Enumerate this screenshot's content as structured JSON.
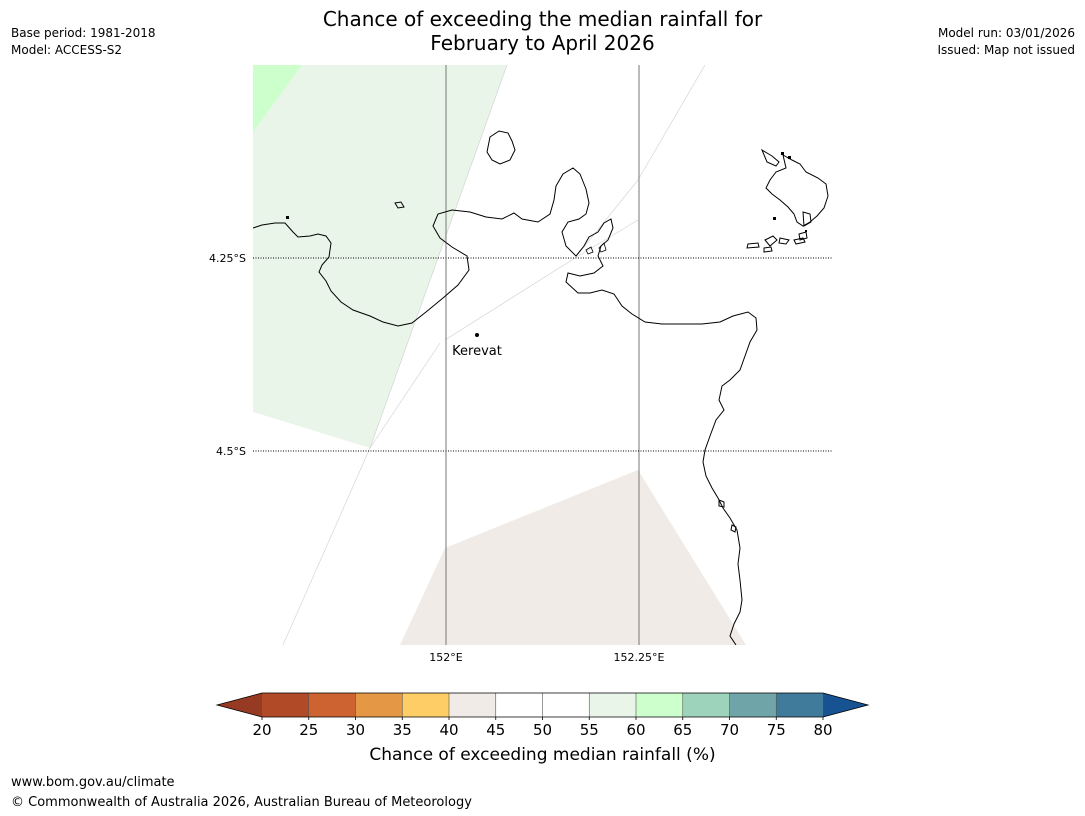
{
  "header": {
    "base_period": "Base period: 1981-2018",
    "model": "Model: ACCESS-S2",
    "title_line1": "Chance of exceeding the median rainfall for",
    "title_line2": "February to April 2026",
    "model_run": "Model run: 03/01/2026",
    "issued": "Issued: Map not issued"
  },
  "map": {
    "lat_labels": [
      "4.25°S",
      "4.5°S"
    ],
    "lon_labels": [
      "152°E",
      "152.25°E"
    ],
    "place_name": "Kerevat",
    "colors": {
      "band_60_65": "#ccffcc",
      "band_55_60": "#e9f5e9",
      "band_40_45": "#f0ebe6",
      "coastline": "#000000",
      "gridline": "#555555"
    }
  },
  "colorbar": {
    "ticks": [
      "20",
      "25",
      "30",
      "35",
      "40",
      "45",
      "50",
      "55",
      "60",
      "65",
      "70",
      "75",
      "80"
    ],
    "colors": [
      "#b14a26",
      "#cc6331",
      "#e49745",
      "#ffcd66",
      "#f0ebe6",
      "#ffffff",
      "#ffffff",
      "#e9f5e9",
      "#ccffcc",
      "#9dd2bb",
      "#6fa5a8",
      "#417b9b"
    ],
    "under_color": "#973a23",
    "over_color": "#175392",
    "title": "Chance of exceeding median rainfall (%)"
  },
  "footer": {
    "url": "www.bom.gov.au/climate",
    "copyright": "© Commonwealth of Australia 2026, Australian Bureau of Meteorology"
  }
}
